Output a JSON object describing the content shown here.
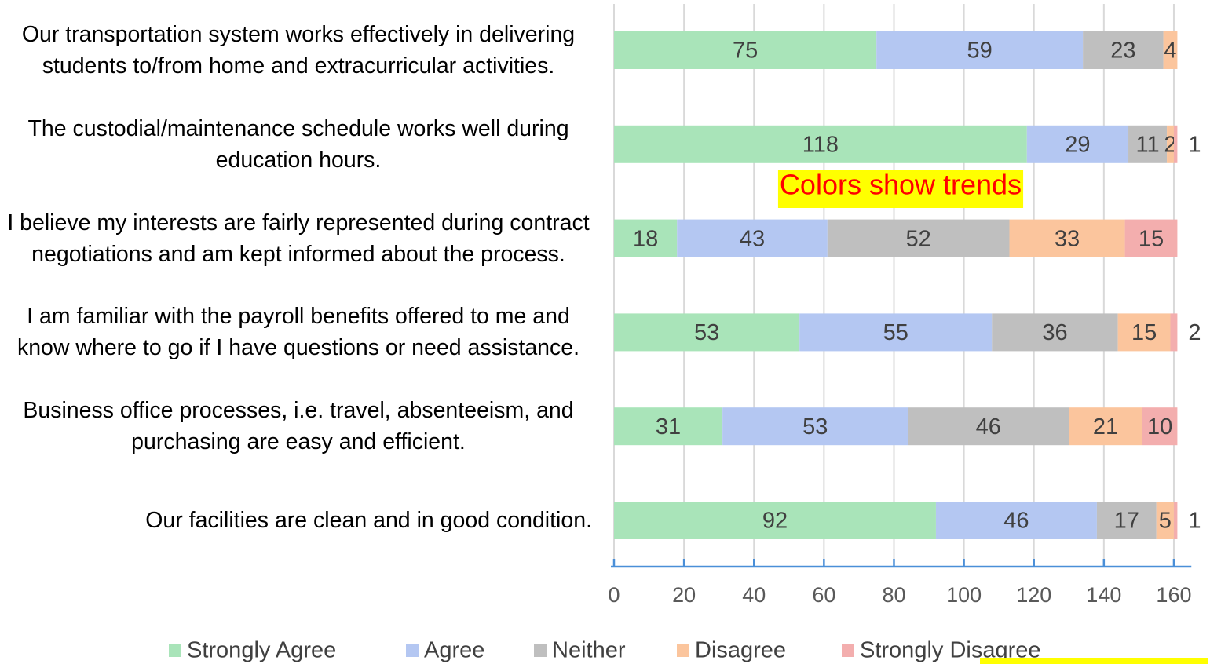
{
  "chart_data": {
    "type": "stacked-barh",
    "categories": [
      "Our transportation system works effectively in delivering students to/from home and extracurricular activities.",
      "The custodial/maintenance schedule works well during education hours.",
      "I believe my interests are fairly represented during contract negotiations and am kept informed about the process.",
      "I am familiar with the payroll benefits offered to me and know where to go if I have questions or need assistance.",
      "Business office processes, i.e. travel, absenteeism, and purchasing are easy and efficient.",
      "Our facilities are clean and in good condition."
    ],
    "series": [
      {
        "name": "Strongly Agree",
        "color": "#a9e4b9",
        "values": [
          75,
          118,
          18,
          53,
          31,
          92
        ]
      },
      {
        "name": "Agree",
        "color": "#b4c7f2",
        "values": [
          59,
          29,
          43,
          55,
          53,
          46
        ]
      },
      {
        "name": "Neither",
        "color": "#bfbfbf",
        "values": [
          23,
          11,
          52,
          36,
          46,
          17
        ]
      },
      {
        "name": "Disagree",
        "color": "#fbc59d",
        "values": [
          4,
          2,
          33,
          15,
          21,
          5
        ]
      },
      {
        "name": "Strongly Disagree",
        "color": "#f3aeae",
        "values": [
          null,
          1,
          15,
          2,
          10,
          1
        ]
      }
    ],
    "xlim": [
      0,
      165
    ],
    "xticks": [
      0,
      20,
      40,
      60,
      80,
      100,
      120,
      140,
      160
    ],
    "grid": true,
    "legend": "bottom",
    "annotations": [
      "Colors show trends"
    ]
  }
}
